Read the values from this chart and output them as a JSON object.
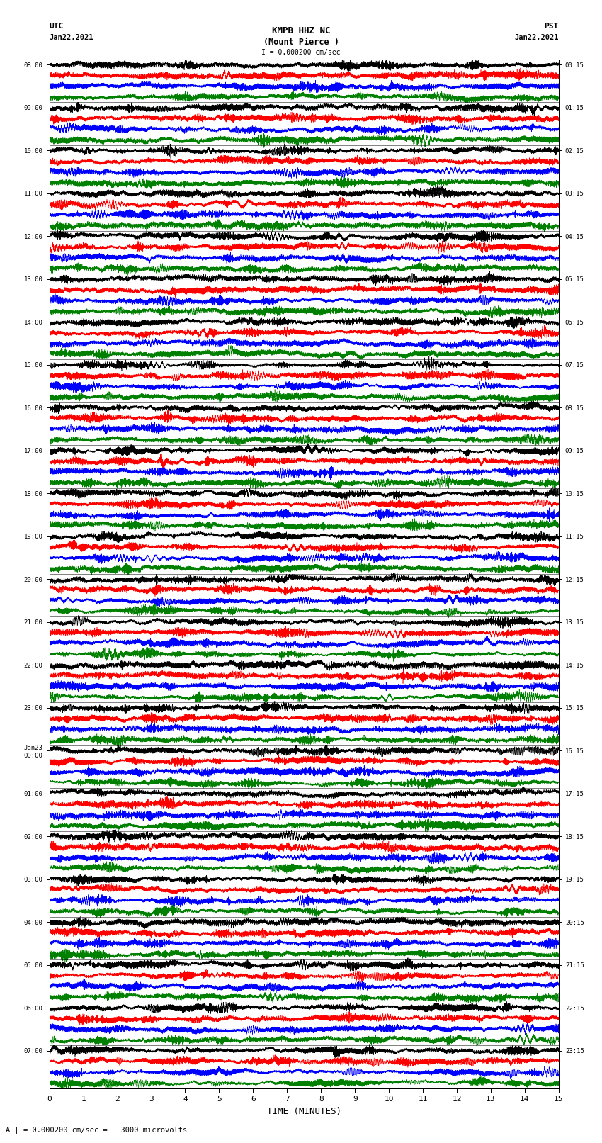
{
  "title_line1": "KMPB HHZ NC",
  "title_line2": "(Mount Pierce )",
  "scale_label": "I = 0.000200 cm/sec",
  "bottom_label": "A | = 0.000200 cm/sec =   3000 microvolts",
  "xlabel": "TIME (MINUTES)",
  "left_times_utc": [
    "08:00",
    "09:00",
    "10:00",
    "11:00",
    "12:00",
    "13:00",
    "14:00",
    "15:00",
    "16:00",
    "17:00",
    "18:00",
    "19:00",
    "20:00",
    "21:00",
    "22:00",
    "23:00",
    "Jan23\n00:00",
    "01:00",
    "02:00",
    "03:00",
    "04:00",
    "05:00",
    "06:00",
    "07:00"
  ],
  "right_times_pst": [
    "00:15",
    "01:15",
    "02:15",
    "03:15",
    "04:15",
    "05:15",
    "06:15",
    "07:15",
    "08:15",
    "09:15",
    "10:15",
    "11:15",
    "12:15",
    "13:15",
    "14:15",
    "15:15",
    "16:15",
    "17:15",
    "18:15",
    "19:15",
    "20:15",
    "21:15",
    "22:15",
    "23:15"
  ],
  "num_rows": 96,
  "traces_per_group": 4,
  "trace_colors": [
    "black",
    "red",
    "blue",
    "green"
  ],
  "background_color": "white",
  "samples_per_row": 4500,
  "amp": 0.42
}
